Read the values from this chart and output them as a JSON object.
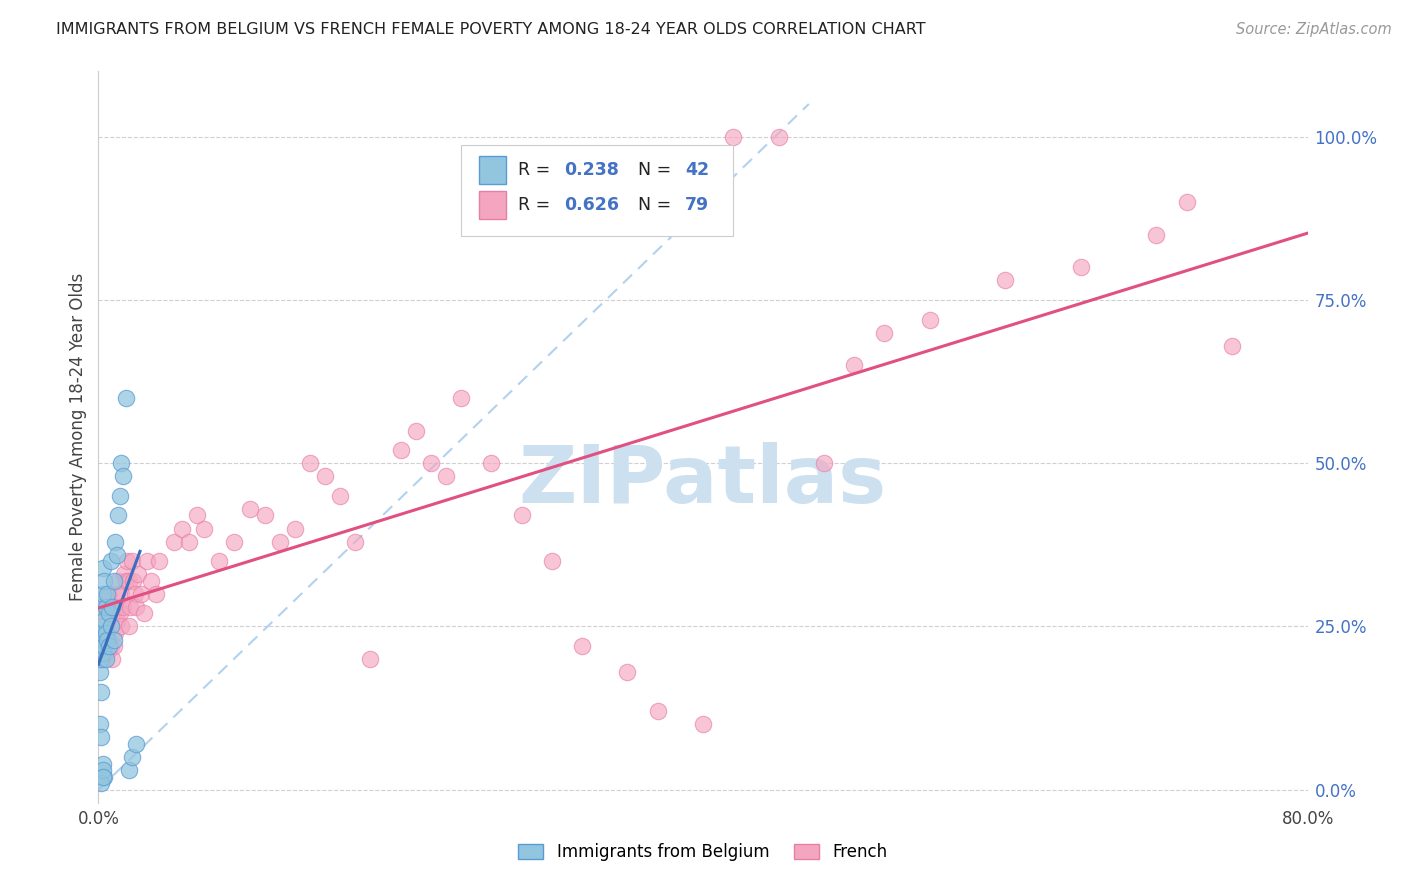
{
  "title": "IMMIGRANTS FROM BELGIUM VS FRENCH FEMALE POVERTY AMONG 18-24 YEAR OLDS CORRELATION CHART",
  "source": "Source: ZipAtlas.com",
  "ylabel": "Female Poverty Among 18-24 Year Olds",
  "xlim": [
    0,
    0.8
  ],
  "ylim": [
    -0.02,
    1.1
  ],
  "yticks_right": [
    0.0,
    0.25,
    0.5,
    0.75,
    1.0
  ],
  "ytick_labels_right": [
    "0.0%",
    "25.0%",
    "50.0%",
    "75.0%",
    "100.0%"
  ],
  "legend_r1": "0.238",
  "legend_n1": "42",
  "legend_r2": "0.626",
  "legend_n2": "79",
  "color_blue": "#92c5de",
  "color_blue_edge": "#5b9bd5",
  "color_pink": "#f4a6c0",
  "color_pink_edge": "#e87da8",
  "color_pink_line": "#e05080",
  "color_blue_line": "#3a6fbf",
  "color_diag": "#aaccee",
  "watermark": "ZIPatlas",
  "watermark_color": "#cde0f0",
  "blue_x": [
    0.001,
    0.001,
    0.002,
    0.002,
    0.002,
    0.003,
    0.003,
    0.003,
    0.003,
    0.004,
    0.004,
    0.004,
    0.005,
    0.005,
    0.005,
    0.006,
    0.006,
    0.007,
    0.007,
    0.008,
    0.008,
    0.009,
    0.01,
    0.01,
    0.011,
    0.012,
    0.013,
    0.014,
    0.015,
    0.016,
    0.018,
    0.02,
    0.022,
    0.025,
    0.001,
    0.002,
    0.003,
    0.004,
    0.002,
    0.003,
    0.003,
    0.002
  ],
  "blue_y": [
    0.18,
    0.22,
    0.2,
    0.24,
    0.28,
    0.21,
    0.25,
    0.3,
    0.34,
    0.22,
    0.26,
    0.32,
    0.2,
    0.24,
    0.28,
    0.23,
    0.3,
    0.22,
    0.27,
    0.25,
    0.35,
    0.28,
    0.23,
    0.32,
    0.38,
    0.36,
    0.42,
    0.45,
    0.5,
    0.48,
    0.6,
    0.03,
    0.05,
    0.07,
    0.1,
    0.08,
    0.04,
    0.02,
    0.01,
    0.03,
    0.02,
    0.15
  ],
  "pink_x": [
    0.003,
    0.004,
    0.005,
    0.005,
    0.006,
    0.006,
    0.007,
    0.007,
    0.008,
    0.008,
    0.009,
    0.009,
    0.01,
    0.01,
    0.011,
    0.012,
    0.012,
    0.013,
    0.013,
    0.014,
    0.015,
    0.015,
    0.016,
    0.017,
    0.018,
    0.019,
    0.02,
    0.02,
    0.021,
    0.022,
    0.023,
    0.024,
    0.025,
    0.026,
    0.028,
    0.03,
    0.032,
    0.035,
    0.038,
    0.04,
    0.05,
    0.055,
    0.06,
    0.065,
    0.07,
    0.08,
    0.09,
    0.1,
    0.11,
    0.12,
    0.13,
    0.14,
    0.15,
    0.16,
    0.17,
    0.18,
    0.2,
    0.21,
    0.22,
    0.23,
    0.24,
    0.26,
    0.28,
    0.3,
    0.32,
    0.35,
    0.37,
    0.4,
    0.42,
    0.45,
    0.48,
    0.5,
    0.52,
    0.55,
    0.6,
    0.65,
    0.7,
    0.72,
    0.75
  ],
  "pink_y": [
    0.22,
    0.2,
    0.24,
    0.26,
    0.21,
    0.28,
    0.23,
    0.3,
    0.22,
    0.25,
    0.2,
    0.27,
    0.22,
    0.28,
    0.24,
    0.3,
    0.26,
    0.28,
    0.32,
    0.27,
    0.25,
    0.3,
    0.28,
    0.33,
    0.32,
    0.35,
    0.25,
    0.32,
    0.28,
    0.35,
    0.32,
    0.3,
    0.28,
    0.33,
    0.3,
    0.27,
    0.35,
    0.32,
    0.3,
    0.35,
    0.38,
    0.4,
    0.38,
    0.42,
    0.4,
    0.35,
    0.38,
    0.43,
    0.42,
    0.38,
    0.4,
    0.5,
    0.48,
    0.45,
    0.38,
    0.2,
    0.52,
    0.55,
    0.5,
    0.48,
    0.6,
    0.5,
    0.42,
    0.35,
    0.22,
    0.18,
    0.12,
    0.1,
    1.0,
    1.0,
    0.5,
    0.65,
    0.7,
    0.72,
    0.78,
    0.8,
    0.85,
    0.9,
    0.68
  ]
}
